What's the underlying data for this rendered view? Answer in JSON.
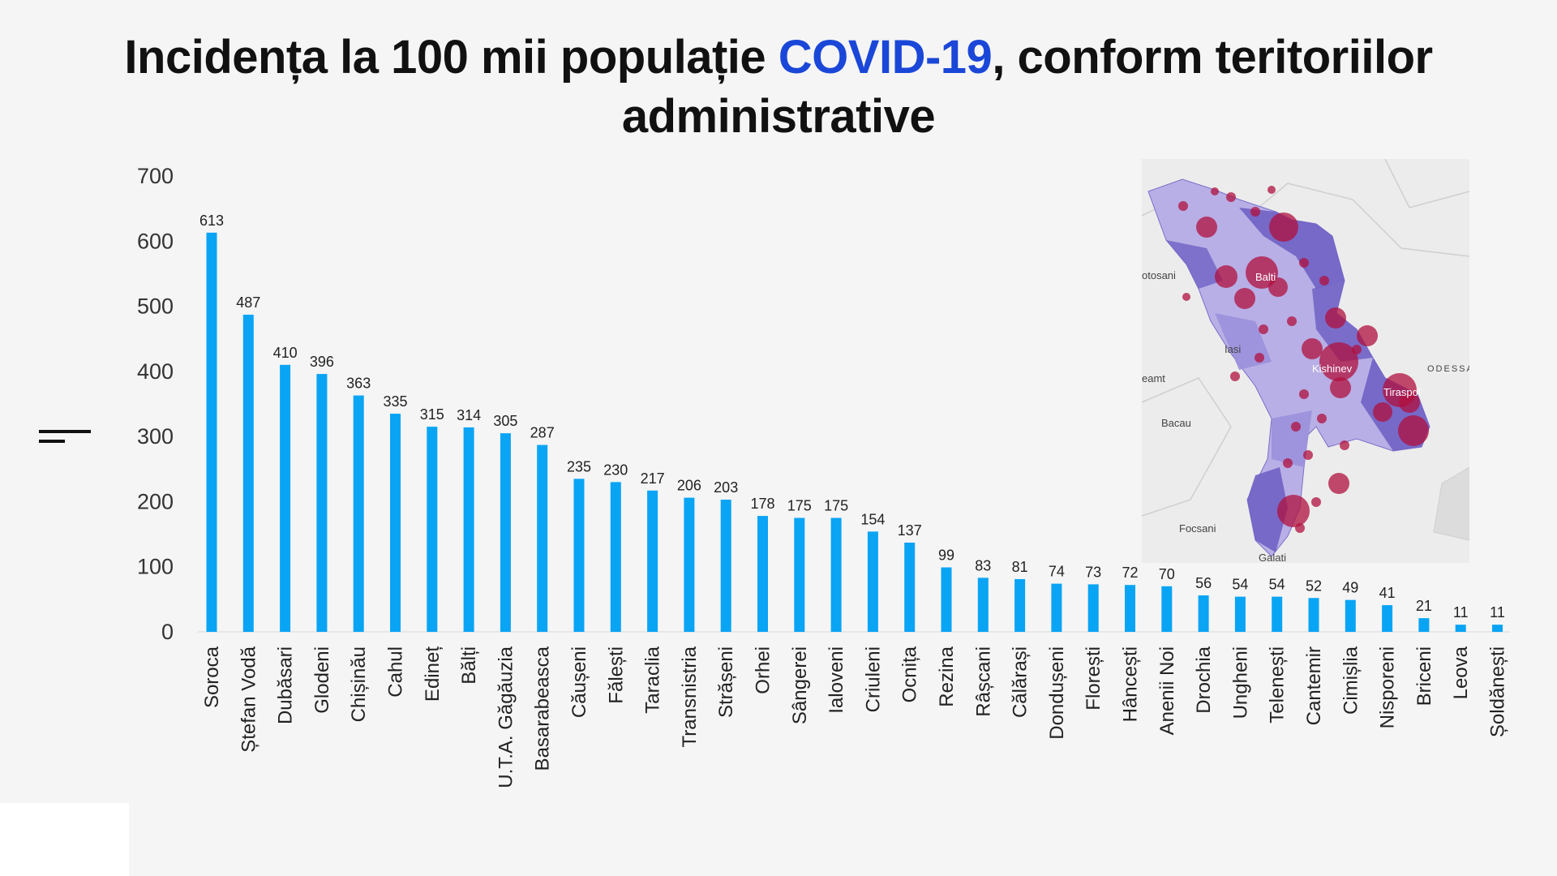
{
  "title": {
    "part1": "Incidența la 100 mii populație ",
    "accent": "COVID-19",
    "part2": ", conform teritoriilor",
    "line2": "administrative"
  },
  "colors": {
    "bar": "#0aa4f5",
    "title_accent": "#1a47d8",
    "map_region_dark": "#6f62c4",
    "map_region_light": "#b8afe6",
    "map_bubble": "#b0103e"
  },
  "chart_data": {
    "type": "bar",
    "ylim": [
      0,
      700
    ],
    "yticks": [
      0,
      100,
      200,
      300,
      400,
      500,
      600,
      700
    ],
    "grid": false,
    "categories": [
      "Soroca",
      "Ștefan Vodă",
      "Dubăsari",
      "Glodeni",
      "Chișinău",
      "Cahul",
      "Edineț",
      "Bălți",
      "U.T.A. Găgăuzia",
      "Basarabeasca",
      "Căușeni",
      "Fălești",
      "Taraclia",
      "Transnistria",
      "Strășeni",
      "Orhei",
      "Sângerei",
      "Ialoveni",
      "Criuleni",
      "Ocnița",
      "Rezina",
      "Râșcani",
      "Călărași",
      "Dondușeni",
      "Florești",
      "Hâncești",
      "Anenii Noi",
      "Drochia",
      "Ungheni",
      "Telenești",
      "Cantemir",
      "Cimișlia",
      "Nisporeni",
      "Briceni",
      "Leova",
      "Șoldănești"
    ],
    "values": [
      613,
      487,
      410,
      396,
      363,
      335,
      315,
      314,
      305,
      287,
      235,
      230,
      217,
      206,
      203,
      178,
      175,
      175,
      154,
      137,
      99,
      83,
      81,
      74,
      73,
      72,
      70,
      56,
      54,
      54,
      52,
      49,
      41,
      21,
      11,
      11
    ]
  },
  "map": {
    "labels": [
      "otosani",
      "Iasi",
      "eamt",
      "Bacau",
      "Focsani",
      "Galati",
      "ODESSA"
    ],
    "cities": [
      "Balti",
      "Kishinev",
      "Tiraspol"
    ]
  }
}
